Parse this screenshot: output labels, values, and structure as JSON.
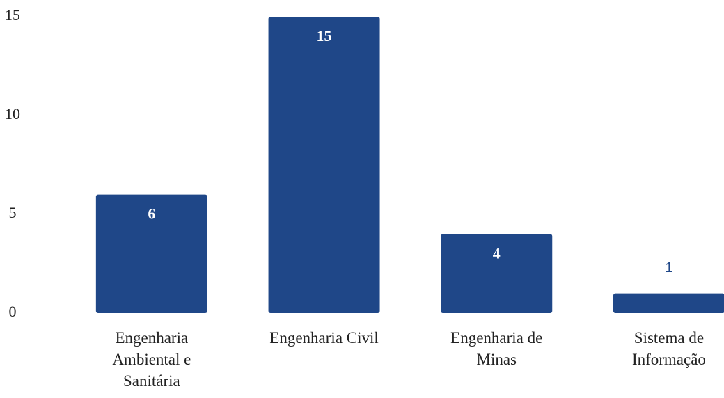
{
  "chart_data": {
    "type": "bar",
    "categories": [
      "Engenharia Ambiental e Sanitária",
      "Engenharia Civil",
      "Engenharia de Minas",
      "Sistema de Informação"
    ],
    "values": [
      6,
      15,
      4,
      1
    ],
    "color": "#1f4788",
    "ylim": [
      0,
      15
    ],
    "yticks": [
      0,
      5,
      10,
      15
    ],
    "grid": false
  }
}
